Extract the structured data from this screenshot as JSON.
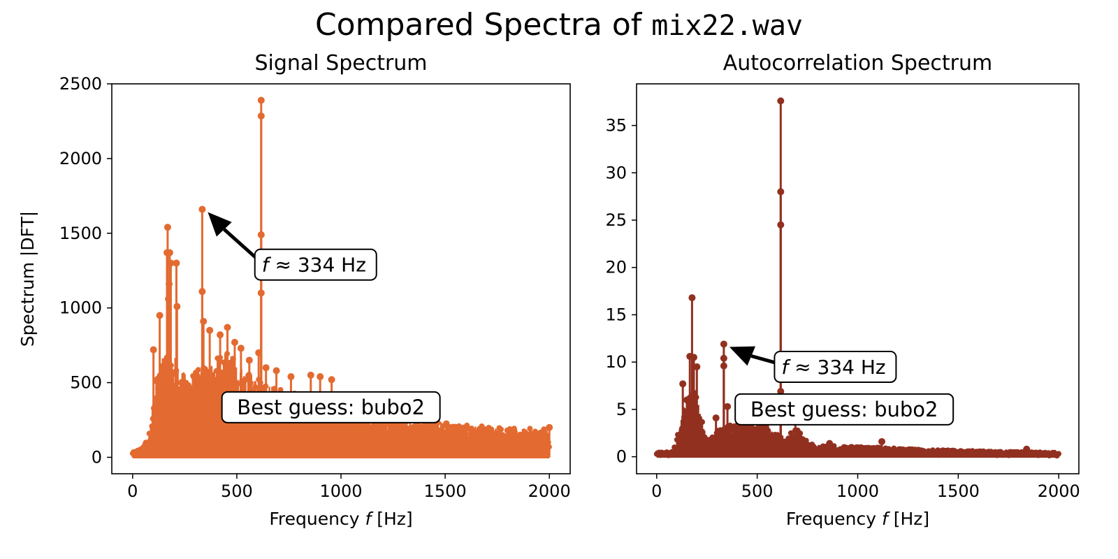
{
  "suptitle": {
    "prefix": "Compared Spectra of ",
    "filename": "mix22.wav"
  },
  "chart_data": [
    {
      "type": "stem",
      "title": "Signal Spectrum",
      "xlabel_prefix": "Frequency ",
      "xlabel_var": "f",
      "xlabel_suffix": " [Hz]",
      "ylabel": "Spectrum |DFT|",
      "xlim": [
        -100,
        2100
      ],
      "ylim": [
        -110,
        2500
      ],
      "xticks": [
        0,
        500,
        1000,
        1500,
        2000
      ],
      "yticks": [
        0,
        500,
        1000,
        1500,
        2000,
        2500
      ],
      "color": "#e36a30",
      "peaks": [
        {
          "x": 168,
          "y": 1540
        },
        {
          "x": 165,
          "y": 1370
        },
        {
          "x": 178,
          "y": 1370
        },
        {
          "x": 183,
          "y": 1300
        },
        {
          "x": 175,
          "y": 1160
        },
        {
          "x": 172,
          "y": 1060
        },
        {
          "x": 130,
          "y": 950
        },
        {
          "x": 210,
          "y": 1300
        },
        {
          "x": 213,
          "y": 1010
        },
        {
          "x": 100,
          "y": 720
        },
        {
          "x": 334,
          "y": 1660
        },
        {
          "x": 334,
          "y": 1110
        },
        {
          "x": 340,
          "y": 910
        },
        {
          "x": 370,
          "y": 850
        },
        {
          "x": 420,
          "y": 820
        },
        {
          "x": 455,
          "y": 870
        },
        {
          "x": 490,
          "y": 770
        },
        {
          "x": 520,
          "y": 730
        },
        {
          "x": 560,
          "y": 650
        },
        {
          "x": 617,
          "y": 2390
        },
        {
          "x": 617,
          "y": 2285
        },
        {
          "x": 617,
          "y": 1490
        },
        {
          "x": 617,
          "y": 1100
        },
        {
          "x": 605,
          "y": 700
        },
        {
          "x": 640,
          "y": 600
        },
        {
          "x": 690,
          "y": 580
        },
        {
          "x": 760,
          "y": 540
        },
        {
          "x": 855,
          "y": 550
        },
        {
          "x": 900,
          "y": 540
        },
        {
          "x": 955,
          "y": 520
        },
        {
          "x": 2000,
          "y": 200
        }
      ],
      "envelope": [
        [
          0,
          30
        ],
        [
          50,
          60
        ],
        [
          80,
          150
        ],
        [
          100,
          380
        ],
        [
          120,
          520
        ],
        [
          150,
          650
        ],
        [
          180,
          700
        ],
        [
          220,
          560
        ],
        [
          260,
          500
        ],
        [
          300,
          520
        ],
        [
          340,
          560
        ],
        [
          400,
          600
        ],
        [
          450,
          640
        ],
        [
          500,
          590
        ],
        [
          560,
          520
        ],
        [
          620,
          470
        ],
        [
          700,
          420
        ],
        [
          800,
          380
        ],
        [
          900,
          340
        ],
        [
          1000,
          300
        ],
        [
          1200,
          260
        ],
        [
          1400,
          230
        ],
        [
          1600,
          200
        ],
        [
          1800,
          180
        ],
        [
          2000,
          170
        ]
      ],
      "annotation": {
        "text_prefix": "f",
        "text_suffix": " ≈ 334 Hz",
        "arrow_x": 334,
        "arrow_y": 1660,
        "text_x": 600,
        "text_y": 1290
      },
      "guess_box": {
        "text": "Best guess: bubo2",
        "x": 1475,
        "y": 335
      }
    },
    {
      "type": "stem",
      "title": "Autocorrelation Spectrum",
      "xlabel_prefix": "Frequency ",
      "xlabel_var": "f",
      "xlabel_suffix": " [Hz]",
      "ylabel": "",
      "xlim": [
        -100,
        2100
      ],
      "ylim": [
        -1.8,
        39.4
      ],
      "xticks": [
        0,
        500,
        1000,
        1500,
        2000
      ],
      "yticks": [
        0,
        5,
        10,
        15,
        20,
        25,
        30,
        35
      ],
      "color": "#923020",
      "peaks": [
        {
          "x": 176,
          "y": 16.8
        },
        {
          "x": 165,
          "y": 10.6
        },
        {
          "x": 185,
          "y": 10.5
        },
        {
          "x": 130,
          "y": 7.7
        },
        {
          "x": 150,
          "y": 6.0
        },
        {
          "x": 200,
          "y": 9.5
        },
        {
          "x": 334,
          "y": 11.9
        },
        {
          "x": 334,
          "y": 10.4
        },
        {
          "x": 334,
          "y": 9.6
        },
        {
          "x": 295,
          "y": 4.1
        },
        {
          "x": 352,
          "y": 5.3
        },
        {
          "x": 420,
          "y": 4.4
        },
        {
          "x": 480,
          "y": 4.6
        },
        {
          "x": 530,
          "y": 4.8
        },
        {
          "x": 617,
          "y": 37.6
        },
        {
          "x": 617,
          "y": 28.0
        },
        {
          "x": 617,
          "y": 24.5
        },
        {
          "x": 617,
          "y": 6.9
        },
        {
          "x": 617,
          "y": 4.7
        },
        {
          "x": 690,
          "y": 4.6
        },
        {
          "x": 860,
          "y": 1.4
        },
        {
          "x": 1120,
          "y": 1.6
        },
        {
          "x": 1840,
          "y": 0.8
        }
      ],
      "envelope": [
        [
          0,
          0.4
        ],
        [
          80,
          0.5
        ],
        [
          110,
          2.5
        ],
        [
          130,
          4.5
        ],
        [
          160,
          6.0
        ],
        [
          190,
          6.5
        ],
        [
          220,
          4.0
        ],
        [
          250,
          1.5
        ],
        [
          280,
          2.0
        ],
        [
          320,
          3.0
        ],
        [
          360,
          3.0
        ],
        [
          420,
          3.6
        ],
        [
          480,
          3.6
        ],
        [
          540,
          3.2
        ],
        [
          600,
          2.2
        ],
        [
          650,
          2.0
        ],
        [
          700,
          2.8
        ],
        [
          760,
          1.3
        ],
        [
          900,
          1.0
        ],
        [
          1100,
          0.9
        ],
        [
          1300,
          0.7
        ],
        [
          1500,
          0.6
        ],
        [
          1700,
          0.5
        ],
        [
          2000,
          0.4
        ]
      ],
      "annotation": {
        "text_prefix": "f",
        "text_suffix": " ≈ 334 Hz",
        "arrow_x": 334,
        "arrow_y": 11.9,
        "text_x": 600,
        "text_y": 9.5
      },
      "guess_box": {
        "text": "Best guess: bubo2",
        "x": 1475,
        "y": 5.0
      }
    }
  ]
}
